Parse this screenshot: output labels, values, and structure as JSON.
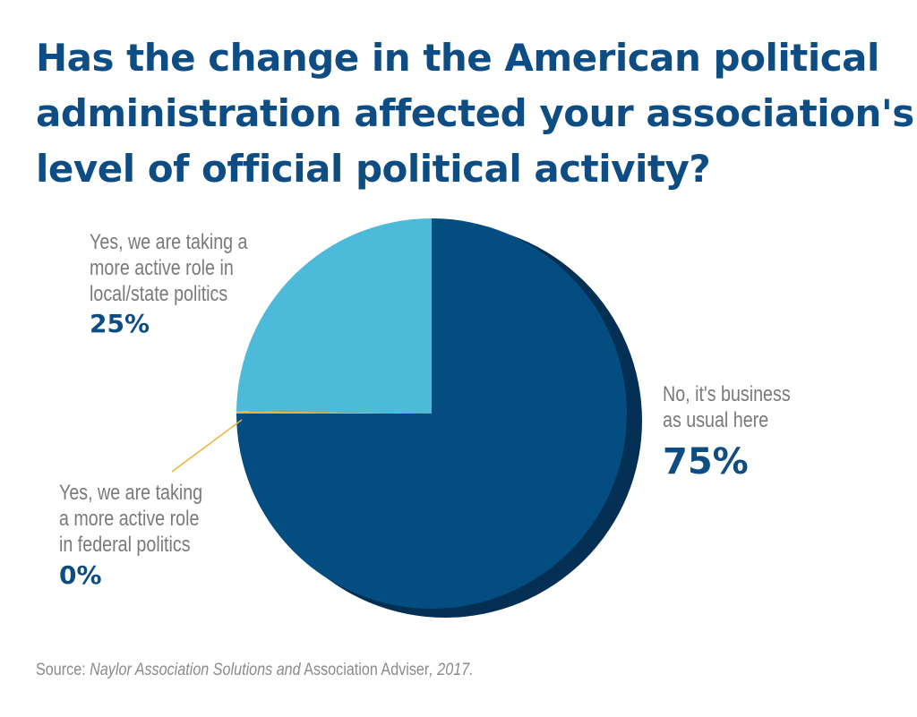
{
  "title_lines": [
    "Has the change in the American political",
    "administration affected your association's",
    "level of official political activity?"
  ],
  "colors": {
    "title": "#0e4d83",
    "no_change": "#034d81",
    "no_change_shadow": "#032f55",
    "state": "#4cbad8",
    "federal": "#f2b23a",
    "label_gray": "#7a7a7a"
  },
  "chart_data": {
    "type": "pie",
    "title": "Has the change in the American political administration affected your association's level of official political activity?",
    "slices": [
      {
        "label_lines": [
          "No, it's business",
          "as usual here"
        ],
        "value": 75,
        "value_label": "75%",
        "color": "#034d81"
      },
      {
        "label_lines": [
          "Yes, we are taking",
          "a more active role",
          "in federal politics"
        ],
        "value": 0,
        "value_label": "0%",
        "color": "#f2b23a"
      },
      {
        "label_lines": [
          "Yes, we are taking a",
          "more active role in",
          "local/state politics"
        ],
        "value": 25,
        "value_label": "25%",
        "color": "#4cbad8"
      }
    ]
  },
  "source": {
    "prefix": "Source: ",
    "part1": "Naylor Association Solutions and",
    "part2": " Association Adviser",
    "part3": ", 2017."
  }
}
